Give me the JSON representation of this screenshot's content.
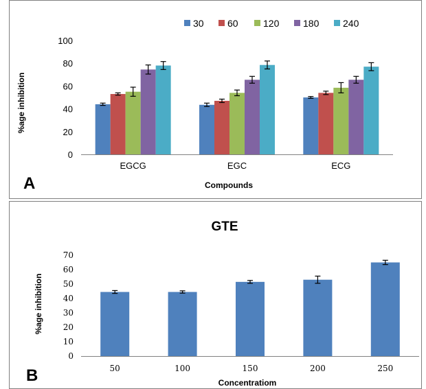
{
  "chart_data": [
    {
      "panel_label": "A",
      "type": "bar",
      "categories": [
        "EGCG",
        "EGC",
        "ECG"
      ],
      "series": [
        {
          "name": "30",
          "color": "#4F81BD",
          "values": [
            44,
            43.5,
            50
          ],
          "errors": [
            1,
            1.5,
            0.8
          ]
        },
        {
          "name": "60",
          "color": "#C0504D",
          "values": [
            53,
            47,
            54
          ],
          "errors": [
            1,
            1.5,
            1.5
          ]
        },
        {
          "name": "120",
          "color": "#9BBB59",
          "values": [
            55,
            54,
            58.5
          ],
          "errors": [
            4,
            2.5,
            4.5
          ]
        },
        {
          "name": "180",
          "color": "#8064A2",
          "values": [
            74.5,
            65.5,
            65.5
          ],
          "errors": [
            4,
            3,
            3
          ]
        },
        {
          "name": "240",
          "color": "#4BACC6",
          "values": [
            78,
            78.5,
            77
          ],
          "errors": [
            3.5,
            3.5,
            3.5
          ]
        }
      ],
      "title": "",
      "xlabel": "Compounds",
      "ylabel": "%age inhibition",
      "ylim": [
        0,
        100
      ],
      "yticks": [
        "0",
        "20",
        "40",
        "60",
        "80",
        "100"
      ],
      "legend_position": "top",
      "grid": false
    },
    {
      "panel_label": "B",
      "type": "bar",
      "categories": [
        "50",
        "100",
        "150",
        "200",
        "250"
      ],
      "series": [
        {
          "color": "#4F81BD",
          "values": [
            44.5,
            44.5,
            51.5,
            53,
            65
          ],
          "errors": [
            1,
            0.8,
            1,
            2.5,
            1.5
          ]
        }
      ],
      "title": "GTE",
      "xlabel": "Concentratiom",
      "ylabel": "%age inhibition",
      "ylim": [
        0,
        70
      ],
      "yticks": [
        "0",
        "10",
        "20",
        "30",
        "40",
        "50",
        "60",
        "70"
      ],
      "grid": false
    }
  ]
}
